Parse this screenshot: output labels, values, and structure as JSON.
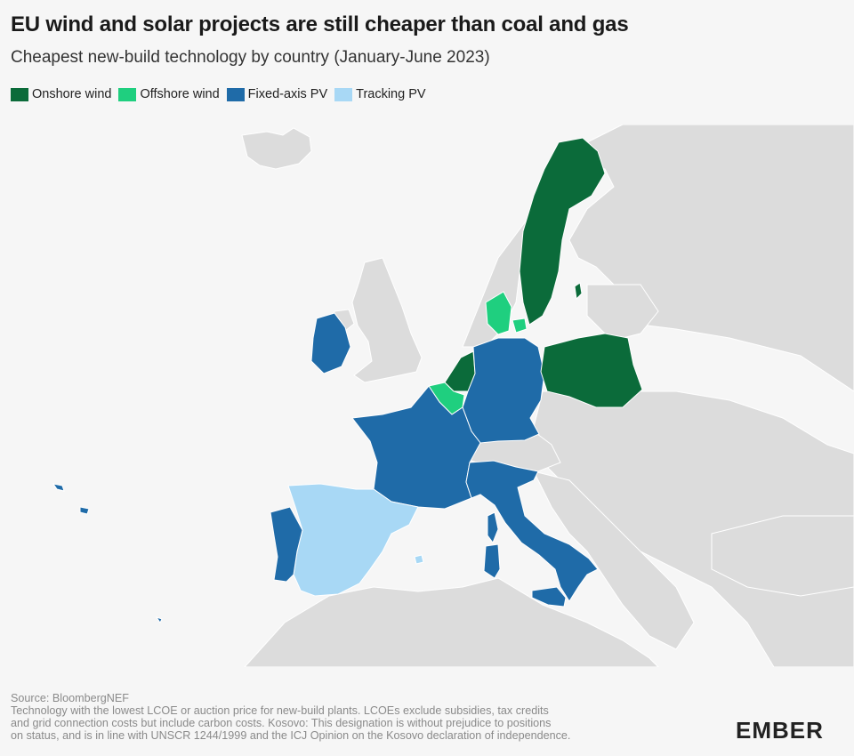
{
  "title": "EU wind and solar projects are still cheaper than coal and gas",
  "subtitle": "Cheapest new-build technology by country (January-June 2023)",
  "legend": [
    {
      "label": "Onshore wind",
      "color": "#0b6b3a"
    },
    {
      "label": "Offshore wind",
      "color": "#1fcf7f"
    },
    {
      "label": "Fixed-axis PV",
      "color": "#1f6ba8"
    },
    {
      "label": "Tracking PV",
      "color": "#a8d8f5"
    }
  ],
  "colors": {
    "background": "#f6f6f6",
    "land": "#dcdcdc",
    "border": "#ffffff"
  },
  "countries": {
    "sweden": "Onshore wind",
    "netherlands": "Onshore wind",
    "poland": "Onshore wind",
    "denmark": "Offshore wind",
    "belgium": "Offshore wind",
    "ireland": "Fixed-axis PV",
    "france": "Fixed-axis PV",
    "germany": "Fixed-axis PV",
    "italy": "Fixed-axis PV",
    "portugal": "Fixed-axis PV",
    "spain": "Tracking PV"
  },
  "footnote": {
    "source": "Source: BloombergNEF",
    "line1": "Technology with the lowest LCOE or auction price for new-build plants. LCOEs exclude subsidies, tax credits",
    "line2": "and grid connection costs but include carbon costs. Kosovo: This designation is without prejudice to positions",
    "line3": "on status, and is in line with UNSCR 1244/1999 and the ICJ Opinion on the Kosovo declaration of independence."
  },
  "logo": "EMBER"
}
